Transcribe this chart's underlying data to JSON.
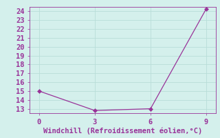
{
  "x": [
    0,
    3,
    6,
    9
  ],
  "y": [
    15,
    12.8,
    13,
    24.3
  ],
  "line_color": "#993399",
  "marker": "D",
  "marker_size": 3,
  "background_color": "#d4f0ec",
  "grid_color": "#b8ddd8",
  "xlabel": "Windchill (Refroidissement éolien,°C)",
  "xlabel_color": "#993399",
  "tick_color": "#993399",
  "spine_color": "#993399",
  "ylim": [
    12.5,
    24.5
  ],
  "xlim": [
    -0.5,
    9.5
  ],
  "yticks": [
    13,
    14,
    15,
    16,
    17,
    18,
    19,
    20,
    21,
    22,
    23,
    24
  ],
  "xticks": [
    0,
    3,
    6,
    9
  ],
  "label_fontsize": 7.5
}
